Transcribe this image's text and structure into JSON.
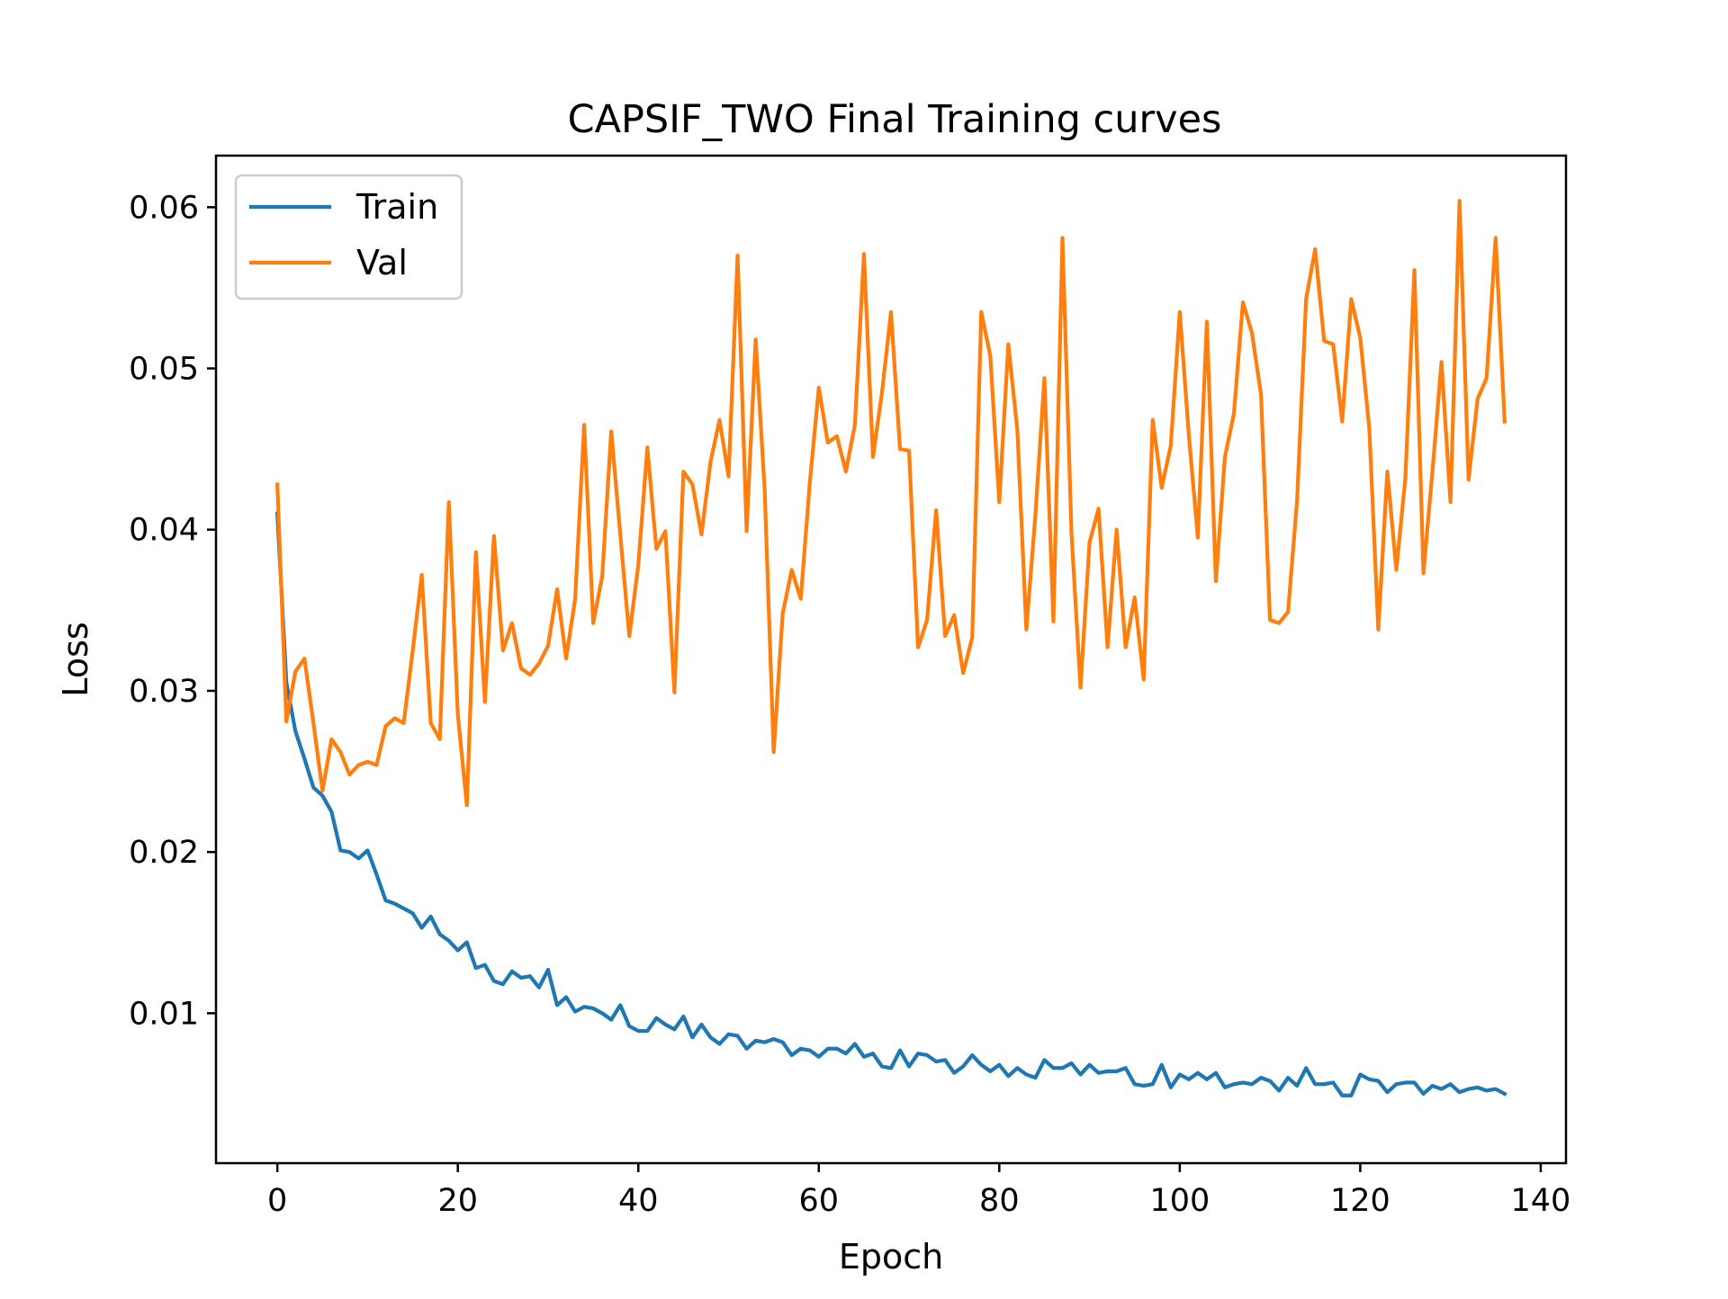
{
  "colors": {
    "train": "#1f77b4",
    "val": "#ff7f0e",
    "axes": "#000000",
    "background": "#ffffff"
  },
  "chart_data": {
    "type": "line",
    "title": "CAPSIF_TWO Final Training curves",
    "xlabel": "Epoch",
    "ylabel": "Loss",
    "xlim": [
      -6.8,
      142.8
    ],
    "ylim": [
      0.0007,
      0.0632
    ],
    "xticks": [
      0,
      20,
      40,
      60,
      80,
      100,
      120,
      140
    ],
    "yticks": [
      0.01,
      0.02,
      0.03,
      0.04,
      0.05,
      0.06
    ],
    "xtick_labels": [
      "0",
      "20",
      "40",
      "60",
      "80",
      "100",
      "120",
      "140"
    ],
    "ytick_labels": [
      "0.01",
      "0.02",
      "0.03",
      "0.04",
      "0.05",
      "0.06"
    ],
    "grid": false,
    "legend_position": "top-left",
    "series": [
      {
        "name": "Train",
        "color": "#1f77b4",
        "x_start": 0,
        "values": [
          0.041,
          0.0305,
          0.0275,
          0.0258,
          0.024,
          0.0235,
          0.0225,
          0.0201,
          0.02,
          0.0196,
          0.0201,
          0.0186,
          0.017,
          0.0168,
          0.0165,
          0.0162,
          0.0153,
          0.016,
          0.0149,
          0.0145,
          0.0139,
          0.0144,
          0.0128,
          0.013,
          0.012,
          0.0118,
          0.0126,
          0.0122,
          0.0123,
          0.0116,
          0.0127,
          0.0105,
          0.011,
          0.0101,
          0.0104,
          0.0103,
          0.01,
          0.0096,
          0.0105,
          0.0092,
          0.0089,
          0.0089,
          0.0097,
          0.0093,
          0.009,
          0.0098,
          0.0085,
          0.0093,
          0.0085,
          0.0081,
          0.0087,
          0.0086,
          0.0078,
          0.0083,
          0.0082,
          0.0084,
          0.0082,
          0.0074,
          0.0078,
          0.0077,
          0.0073,
          0.0078,
          0.0078,
          0.0075,
          0.0081,
          0.0073,
          0.0075,
          0.0067,
          0.0066,
          0.0077,
          0.0067,
          0.0075,
          0.0074,
          0.007,
          0.0071,
          0.0063,
          0.0067,
          0.0074,
          0.0068,
          0.0064,
          0.0068,
          0.0061,
          0.0066,
          0.0062,
          0.006,
          0.0071,
          0.0066,
          0.0066,
          0.0069,
          0.0062,
          0.0068,
          0.0063,
          0.0064,
          0.0064,
          0.0066,
          0.0056,
          0.0055,
          0.0056,
          0.0068,
          0.0054,
          0.0062,
          0.0059,
          0.0063,
          0.0059,
          0.0063,
          0.0054,
          0.0056,
          0.0057,
          0.0056,
          0.006,
          0.0058,
          0.0052,
          0.006,
          0.0055,
          0.0066,
          0.0056,
          0.0056,
          0.0057,
          0.0049,
          0.0049,
          0.0062,
          0.0059,
          0.0058,
          0.0051,
          0.0056,
          0.0057,
          0.0057,
          0.005,
          0.0055,
          0.0053,
          0.0056,
          0.0051,
          0.0053,
          0.0054,
          0.0052,
          0.0053,
          0.005
        ]
      },
      {
        "name": "Val",
        "color": "#ff7f0e",
        "x_start": 0,
        "values": [
          0.0428,
          0.0281,
          0.0312,
          0.032,
          0.028,
          0.0238,
          0.027,
          0.0262,
          0.0248,
          0.0254,
          0.0256,
          0.0254,
          0.0278,
          0.0283,
          0.028,
          0.0325,
          0.0372,
          0.028,
          0.027,
          0.0417,
          0.0285,
          0.0229,
          0.0386,
          0.0293,
          0.0396,
          0.0325,
          0.0342,
          0.0314,
          0.031,
          0.0317,
          0.0328,
          0.0363,
          0.032,
          0.0357,
          0.0465,
          0.0342,
          0.0371,
          0.0461,
          0.0397,
          0.0334,
          0.0378,
          0.0451,
          0.0388,
          0.0399,
          0.0299,
          0.0436,
          0.0428,
          0.0397,
          0.0442,
          0.0468,
          0.0433,
          0.057,
          0.0399,
          0.0518,
          0.0425,
          0.0262,
          0.0348,
          0.0375,
          0.0357,
          0.0429,
          0.0488,
          0.0454,
          0.0458,
          0.0436,
          0.0465,
          0.0571,
          0.0445,
          0.0485,
          0.0535,
          0.045,
          0.0449,
          0.0327,
          0.0344,
          0.0412,
          0.0334,
          0.0347,
          0.0311,
          0.0333,
          0.0535,
          0.0508,
          0.0417,
          0.0515,
          0.0462,
          0.0338,
          0.0409,
          0.0494,
          0.0343,
          0.0581,
          0.0398,
          0.0302,
          0.0392,
          0.0413,
          0.0327,
          0.04,
          0.0327,
          0.0358,
          0.0307,
          0.0468,
          0.0426,
          0.0452,
          0.0535,
          0.0459,
          0.0395,
          0.0529,
          0.0368,
          0.0445,
          0.0472,
          0.0541,
          0.0522,
          0.0484,
          0.0344,
          0.0342,
          0.0349,
          0.0418,
          0.0543,
          0.0574,
          0.0517,
          0.0515,
          0.0467,
          0.0543,
          0.0519,
          0.0463,
          0.0338,
          0.0436,
          0.0375,
          0.0432,
          0.0561,
          0.0373,
          0.0436,
          0.0504,
          0.0417,
          0.0604,
          0.0431,
          0.0481,
          0.0494,
          0.0581,
          0.0467
        ]
      }
    ]
  }
}
